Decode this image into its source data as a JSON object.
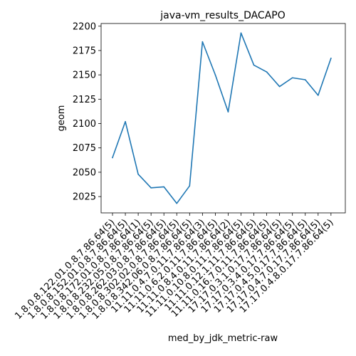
{
  "chart_data": {
    "type": "line",
    "title": "java-vm_results_DACAPO",
    "xlabel": "med_by_jdk_metric-raw",
    "ylabel": "geom",
    "categories": [
      "1.8.0.8.122.01.0.8.7.86.64(5)",
      "1.8.0.8.152.01.0.8.7.86.64(5)",
      "1.8.0.8.172.01.0.8.7.86.64(1)",
      "1.8.0.8.232.05.0.8.7.86.64(5)",
      "1.8.0.8.262.03.0.8.7.86.64(5)",
      "1.8.0.8.302.02.0.8.7.86.64(5)",
      "1.8.0.8.342.06.0.8.7.86.64(5)",
      "11.11.0.4.7.0.11.7.86.64(3)",
      "11.11.0.6.2.0.11.7.86.64(5)",
      "11.11.0.8.4.0.11.7.86.64(2)",
      "11.11.0.10.8.0.11.7.86.64(5)",
      "11.11.0.12.1.11.7.86.64(5)",
      "11.11.0.16.7.0.11.7.86.64(5)",
      "17.17.0.3.1.0.17.7.86.64(5)",
      "17.17.0.3.4.0.17.7.86.64(5)",
      "17.17.0.4.5.0.17.7.86.64(5)",
      "17.17.0.4.7.0.17.7.86.64(5)",
      "17.17.0.4.8.0.17.7.86.64(5)"
    ],
    "series": [
      {
        "values": [
          2065,
          2102,
          2048,
          2034,
          2035,
          2018,
          2036,
          2184,
          2150,
          2112,
          2193,
          2160,
          2153,
          2138,
          2147,
          2145,
          2129,
          2167
        ],
        "color": "#1f77b4"
      }
    ],
    "yticks": [
      2025,
      2050,
      2075,
      2100,
      2125,
      2150,
      2175,
      2200
    ],
    "ylim": [
      2008.25,
      2202.75
    ],
    "grid": false,
    "legend": "none"
  }
}
